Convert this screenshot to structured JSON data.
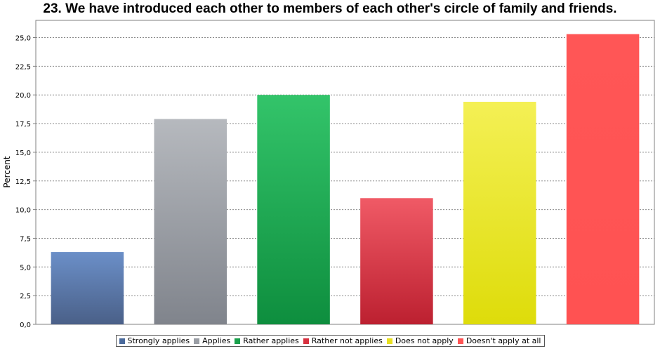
{
  "chart_data": {
    "type": "bar",
    "title": "23. We have introduced each other to members of each other's circle of family and friends.",
    "ylabel": "Percent",
    "xlabel": "",
    "ylim": [
      0,
      26.5
    ],
    "yticks": [
      "0,0",
      "2,5",
      "5,0",
      "7,5",
      "10,0",
      "12,5",
      "15,0",
      "17,5",
      "20,0",
      "22,5",
      "25,0"
    ],
    "grid": true,
    "legend_position": "bottom",
    "categories": [
      "Strongly applies",
      "Applies",
      "Rather applies",
      "Rather not applies",
      "Does not apply",
      "Doesn't apply at all"
    ],
    "values": [
      6.3,
      17.9,
      20.0,
      11.0,
      19.4,
      25.3
    ],
    "colors": [
      {
        "top": "#6b8fc8",
        "bottom": "#4a6088",
        "legend": "#4a6a9c"
      },
      {
        "top": "#b6b9be",
        "bottom": "#80848c",
        "legend": "#9a9ea5"
      },
      {
        "top": "#33c46a",
        "bottom": "#0e8e3e",
        "legend": "#1aa04c"
      },
      {
        "top": "#f05a66",
        "bottom": "#bc2030",
        "legend": "#d83240"
      },
      {
        "top": "#f4f055",
        "bottom": "#dedc0a",
        "legend": "#e8e020"
      },
      {
        "top": "#ff5656",
        "bottom": "#ff5252",
        "legend": "#ff5454"
      }
    ]
  }
}
